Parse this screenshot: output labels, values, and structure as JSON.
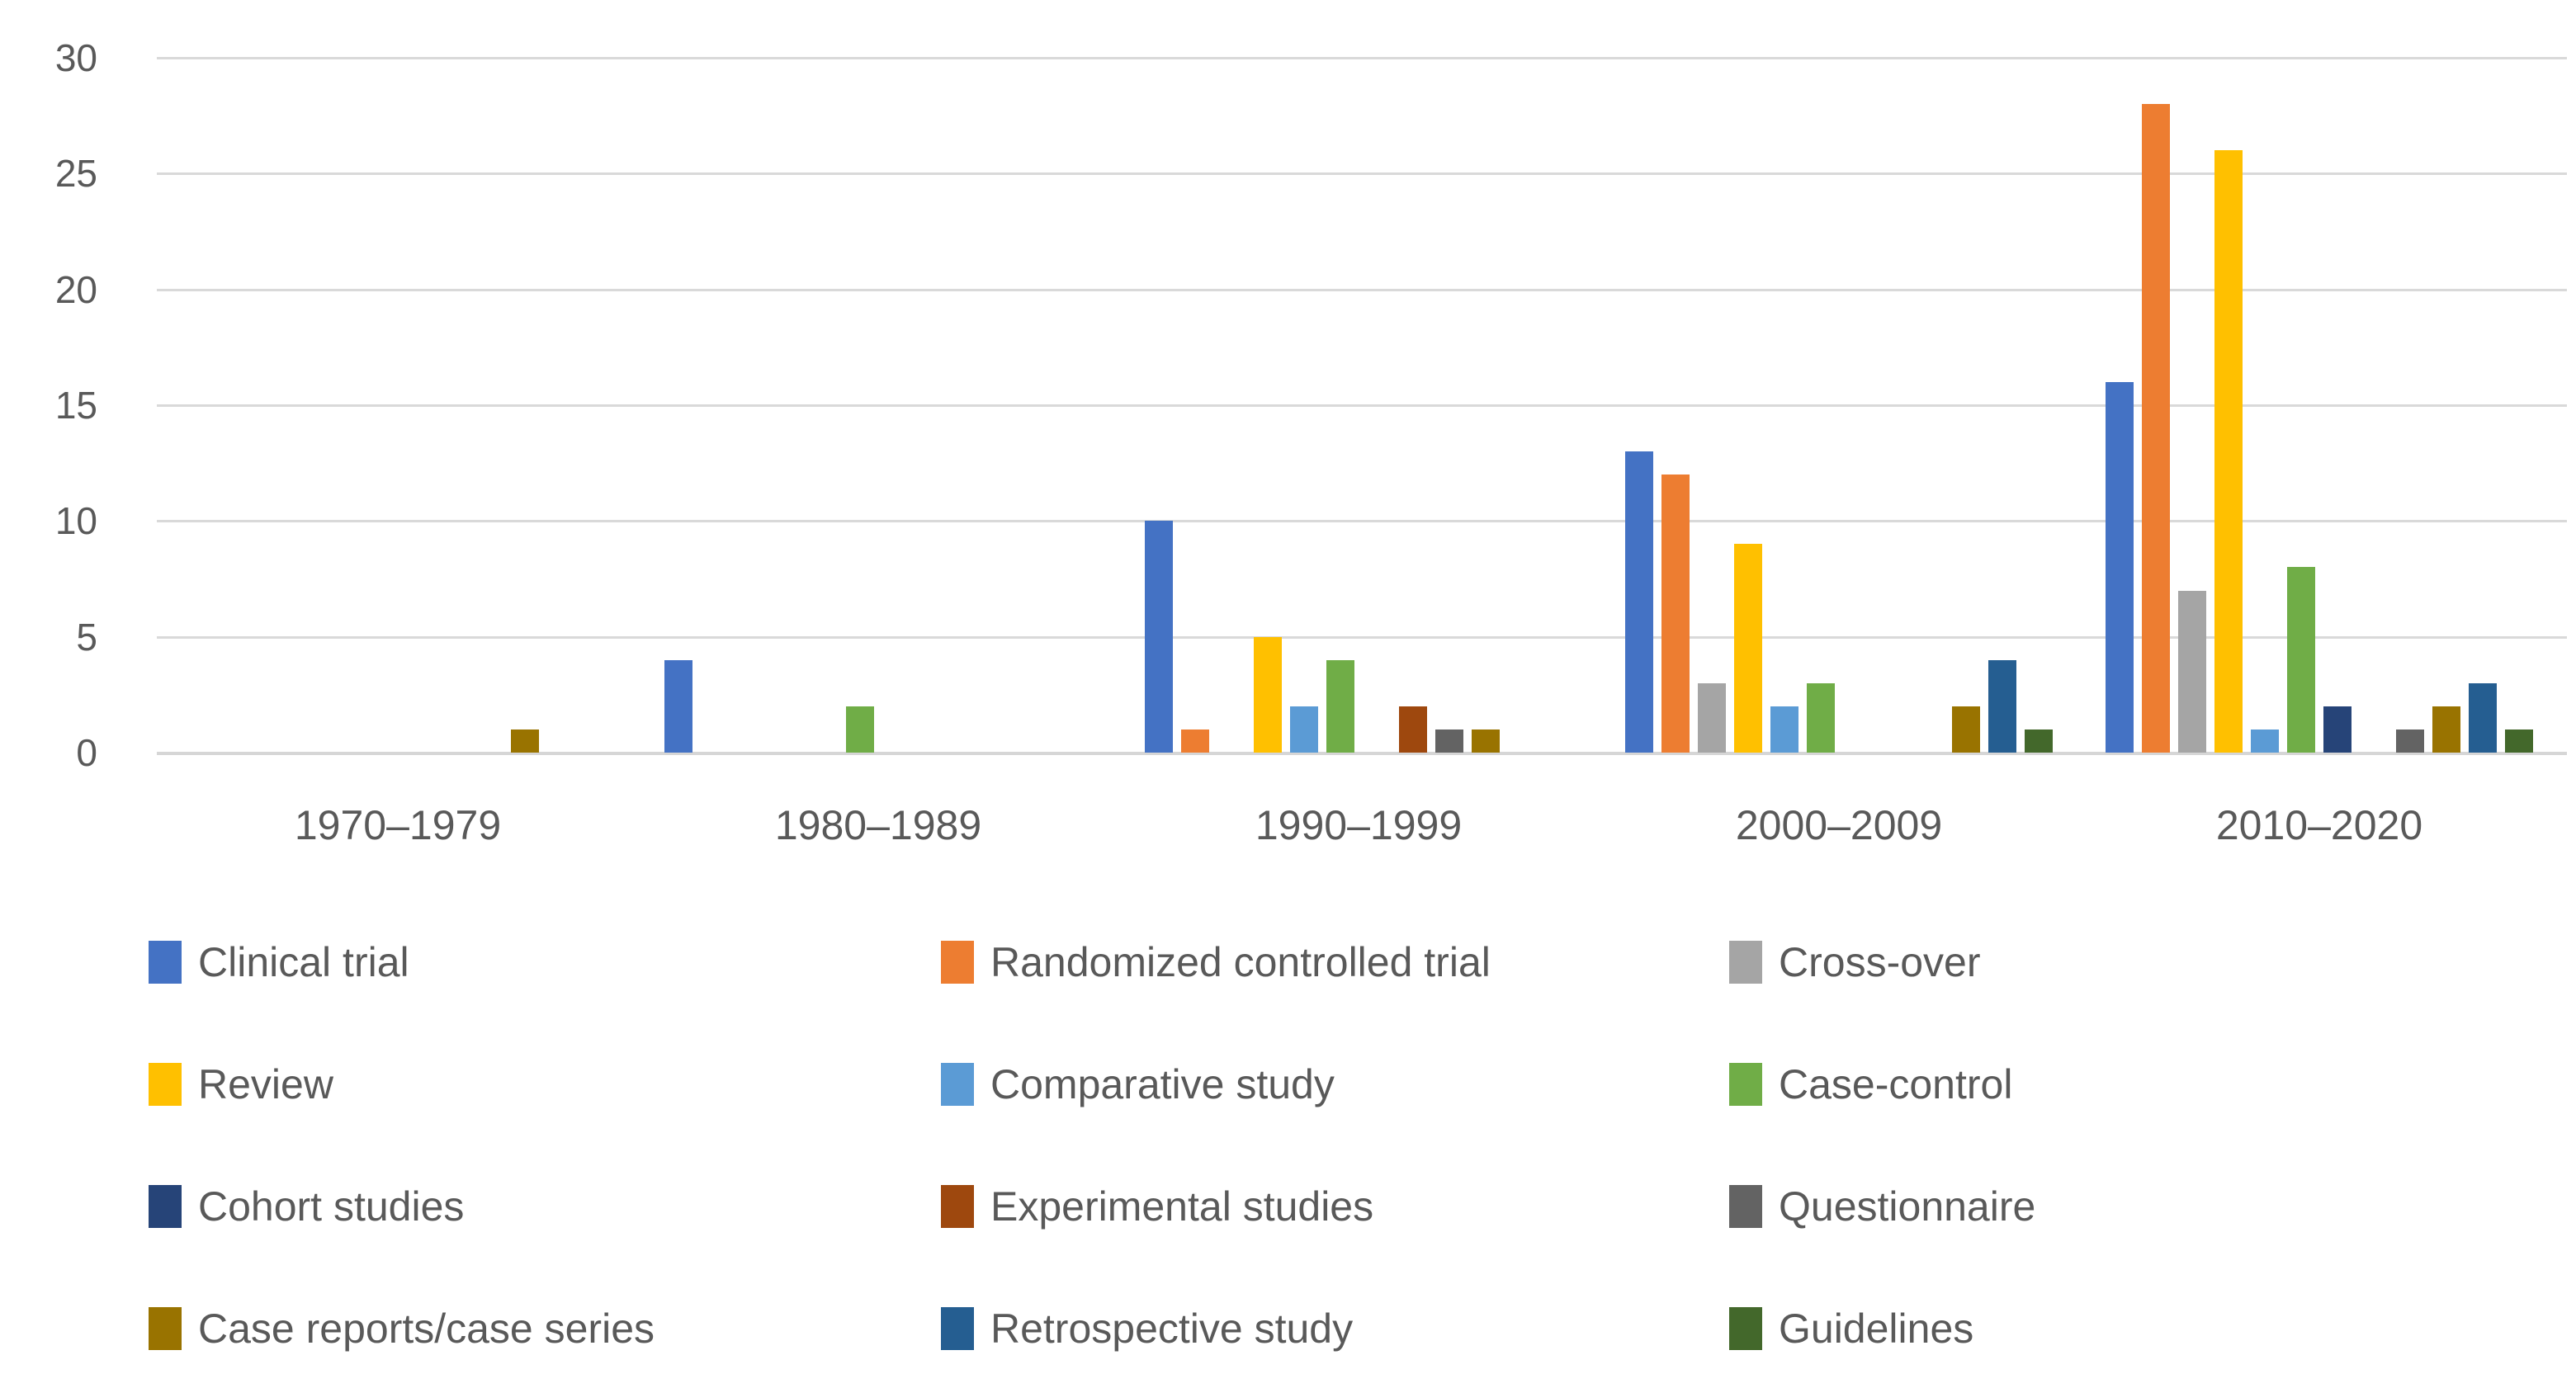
{
  "chart_data": {
    "type": "bar",
    "title": "",
    "xlabel": "",
    "ylabel": "",
    "categories": [
      "1970–1979",
      "1980–1989",
      "1990–1999",
      "2000–2009",
      "2010–2020"
    ],
    "series": [
      {
        "name": "Clinical trial",
        "color": "#4472C4",
        "values": [
          0,
          4,
          10,
          13,
          16
        ]
      },
      {
        "name": "Randomized controlled trial",
        "color": "#ED7D31",
        "values": [
          0,
          0,
          1,
          12,
          28
        ]
      },
      {
        "name": "Cross-over",
        "color": "#A5A5A5",
        "values": [
          0,
          0,
          0,
          3,
          7
        ]
      },
      {
        "name": "Review",
        "color": "#FFC000",
        "values": [
          0,
          0,
          5,
          9,
          26
        ]
      },
      {
        "name": "Comparative study",
        "color": "#5B9BD5",
        "values": [
          0,
          0,
          2,
          2,
          1
        ]
      },
      {
        "name": "Case-control",
        "color": "#70AD47",
        "values": [
          0,
          2,
          4,
          3,
          8
        ]
      },
      {
        "name": "Cohort studies",
        "color": "#264478",
        "values": [
          0,
          0,
          0,
          0,
          2
        ]
      },
      {
        "name": "Experimental studies",
        "color": "#9E480E",
        "values": [
          0,
          0,
          2,
          0,
          0
        ]
      },
      {
        "name": "Questionnaire",
        "color": "#636363",
        "values": [
          0,
          0,
          1,
          0,
          1
        ]
      },
      {
        "name": "Case reports/case series",
        "color": "#997300",
        "values": [
          1,
          0,
          1,
          2,
          2
        ]
      },
      {
        "name": "Retrospective study",
        "color": "#255E91",
        "values": [
          0,
          0,
          0,
          4,
          3
        ]
      },
      {
        "name": "Guidelines",
        "color": "#43682B",
        "values": [
          0,
          0,
          0,
          1,
          1
        ]
      }
    ],
    "y_ticks": [
      0,
      5,
      10,
      15,
      20,
      25,
      30
    ],
    "ylim": [
      0,
      30
    ],
    "grid": true,
    "legend_position": "bottom",
    "legend_columns": 3,
    "axis_text_color": "#595959",
    "gridline_color": "#D9D9D9"
  }
}
